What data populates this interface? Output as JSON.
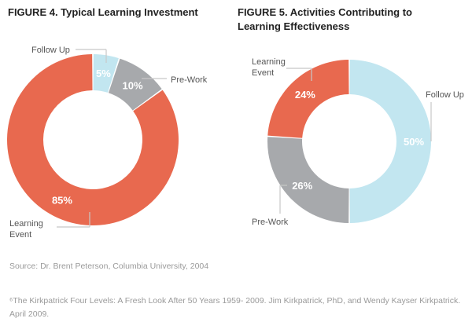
{
  "chart_data": [
    {
      "type": "pie",
      "title": "FIGURE 4. Typical Learning Investment",
      "slices": [
        {
          "label": "Follow Up",
          "value": 5,
          "display": "5%",
          "color": "#c2e6f0"
        },
        {
          "label": "Pre-Work",
          "value": 10,
          "display": "10%",
          "color": "#a7a9ac"
        },
        {
          "label": "Learning Event",
          "value": 85,
          "display": "85%",
          "color": "#e8694f"
        }
      ]
    },
    {
      "type": "pie",
      "title": "FIGURE 5. Activities Contributing to Learning Effectiveness",
      "slices": [
        {
          "label": "Follow Up",
          "value": 50,
          "display": "50%",
          "color": "#c2e6f0"
        },
        {
          "label": "Pre-Work",
          "value": 26,
          "display": "26%",
          "color": "#a7a9ac"
        },
        {
          "label": "Learning Event",
          "value": 24,
          "display": "24%",
          "color": "#e8694f"
        }
      ]
    }
  ],
  "source": "Source: Dr. Brent Peterson, Columbia University, 2004",
  "footnote": "⁶The Kirkpatrick Four Levels: A Fresh Look After 50 Years 1959- 2009. Jim Kirkpatrick, PhD, and Wendy Kayser Kirkpatrick. April 2009."
}
